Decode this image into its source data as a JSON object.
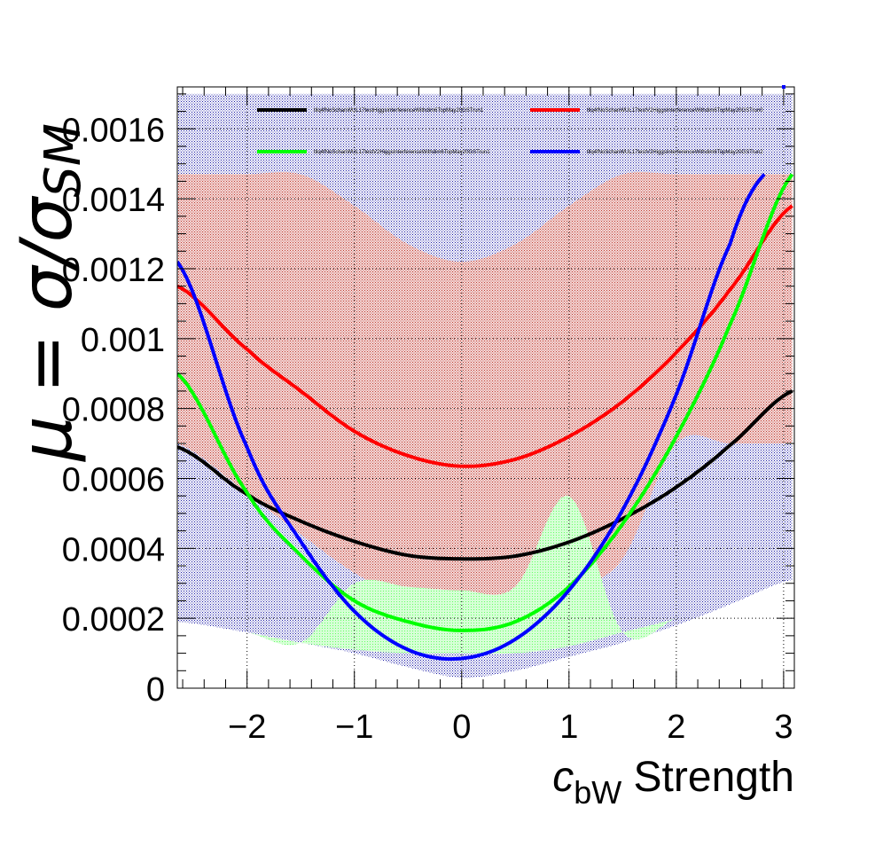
{
  "chart_data": {
    "type": "line",
    "xlabel_main": "c",
    "xlabel_sub": "bW",
    "xlabel_rest": " Strength",
    "ylabel": "μ = σ/σ",
    "ylabel_sub": "SM",
    "xlim": [
      -2.65,
      3.1
    ],
    "ylim": [
      0,
      0.00172
    ],
    "grid": true,
    "legend_position": "top",
    "x_ticks": [
      {
        "v": -2,
        "label": "−2"
      },
      {
        "v": -1,
        "label": "−1"
      },
      {
        "v": 0,
        "label": "0"
      },
      {
        "v": 1,
        "label": "1"
      },
      {
        "v": 2,
        "label": "2"
      },
      {
        "v": 3,
        "label": "3"
      }
    ],
    "y_ticks": [
      {
        "v": 0,
        "label": "0"
      },
      {
        "v": 0.0002,
        "label": "0.0002"
      },
      {
        "v": 0.0004,
        "label": "0.0004"
      },
      {
        "v": 0.0006,
        "label": "0.0006"
      },
      {
        "v": 0.0008,
        "label": "0.0008"
      },
      {
        "v": 0.001,
        "label": "0.001"
      },
      {
        "v": 0.0012,
        "label": "0.0012"
      },
      {
        "v": 0.0014,
        "label": "0.0014"
      },
      {
        "v": 0.0016,
        "label": "0.0016"
      }
    ],
    "series": [
      {
        "name": "tllq4fNoSchanWUL17testHiggsInterferenceWithdim6TopMay20GSTrun1",
        "color": "#000000",
        "x": [
          -2.65,
          -2.0,
          -1.5,
          -1.0,
          -0.5,
          0.0,
          0.5,
          1.0,
          1.5,
          2.0,
          2.5,
          3.08
        ],
        "y": [
          0.00069,
          0.000555,
          0.000478,
          0.00042,
          0.00038,
          0.00037,
          0.000378,
          0.000418,
          0.000485,
          0.000575,
          0.000695,
          0.00085
        ],
        "band_lo": [
          0.00019,
          0.00016,
          0.00013,
          0.0001,
          6e-05,
          3e-05,
          5e-05,
          9e-05,
          0.00013,
          0.00018,
          0.00024,
          0.00031
        ],
        "band_hi": [
          0.0017,
          0.0017,
          0.0017,
          0.0017,
          0.0017,
          0.0017,
          0.0017,
          0.0017,
          0.0017,
          0.0017,
          0.0017,
          0.0017
        ],
        "band_color": "#1a1aa6"
      },
      {
        "name": "tllq4fNoSchanWUL17testV2HiggsInterferenceWithdim6TopMay20GSTrun0",
        "color": "#ff0000",
        "x": [
          -2.65,
          -2.0,
          -1.5,
          -1.0,
          -0.5,
          0.0,
          0.5,
          1.0,
          1.5,
          2.0,
          2.5,
          3.08
        ],
        "y": [
          0.00115,
          0.00097,
          0.00085,
          0.000735,
          0.000665,
          0.000635,
          0.000655,
          0.00072,
          0.00082,
          0.00096,
          0.00114,
          0.00138
        ],
        "band_lo": [
          0.0007,
          0.00056,
          0.00044,
          0.00033,
          0.00025,
          0.00021,
          0.00023,
          0.00028,
          0.00037,
          0.0007,
          0.0007,
          0.0007
        ],
        "band_hi": [
          0.00147,
          0.00147,
          0.00147,
          0.00138,
          0.00127,
          0.00122,
          0.00127,
          0.00138,
          0.00147,
          0.00147,
          0.00147,
          0.00147
        ],
        "band_color": "#c0392b"
      },
      {
        "name": "tllq4fNoSchanWUL17testV2HiggsInterferenceWithdim6TopMay20GSTrun1",
        "color": "#00ff00",
        "x": [
          -2.65,
          -2.0,
          -1.5,
          -1.0,
          -0.5,
          0.0,
          0.5,
          1.0,
          1.5,
          2.0,
          2.5,
          3.08
        ],
        "y": [
          0.0009,
          0.00056,
          0.00038,
          0.00025,
          0.00019,
          0.000165,
          0.00019,
          0.00029,
          0.00047,
          0.00072,
          0.00104,
          0.00147
        ],
        "band_lo": [
          0.00019,
          0.00016,
          0.00013,
          0.00011,
          0.0001,
          0.0001,
          0.0001,
          0.00012,
          0.00016,
          0.0002,
          0.00026,
          0.0003
        ],
        "band_hi": [
          0.00019,
          0.00016,
          0.00013,
          0.0003,
          0.00029,
          0.00028,
          0.00029,
          0.00055,
          0.00016,
          0.0002,
          0.00026,
          0.0003
        ],
        "band_color": "#66ff66"
      },
      {
        "name": "tllq4fNoSchanWUL17testV2HiggsInterferenceWithdim6TopMay20GSTrun2",
        "color": "#0000ff",
        "x": [
          -2.65,
          -2.0,
          -1.5,
          -1.0,
          -0.5,
          0.0,
          0.5,
          1.0,
          1.5,
          2.0,
          2.5,
          2.82
        ],
        "y": [
          0.00122,
          0.00069,
          0.00042,
          0.00022,
          0.00011,
          8.5e-05,
          0.00014,
          0.00028,
          0.00051,
          0.00084,
          0.00127,
          0.00147
        ],
        "band_lo": [
          0.00019,
          0.00016,
          0.00013,
          0.0001,
          6e-05,
          3e-05,
          5e-05,
          9e-05,
          0.00013,
          0.00018,
          0.00024,
          0.00028
        ],
        "band_hi": [
          0.00019,
          0.00016,
          0.00013,
          0.0001,
          6e-05,
          3e-05,
          5e-05,
          9e-05,
          0.00013,
          0.00018,
          0.00024,
          0.00028
        ],
        "band_color": "#1a1aa6"
      }
    ]
  }
}
